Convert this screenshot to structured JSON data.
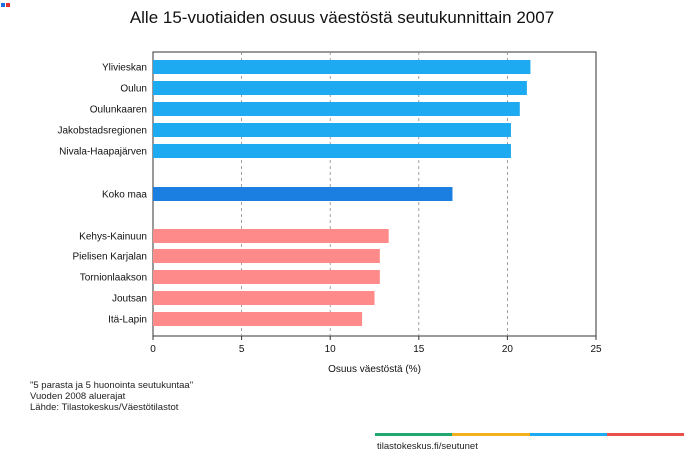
{
  "chart_data": {
    "type": "bar",
    "orientation": "horizontal",
    "title": "Alle 15-vuotiaiden osuus väestöstä seutukunnittain 2007",
    "xlabel": "Osuus väestöstä (%)",
    "ylabel": "",
    "xlim": [
      0,
      25
    ],
    "xticks": [
      0,
      5,
      10,
      15,
      20,
      25
    ],
    "grid": "vertical dashed",
    "categories": [
      "Ylivieskan",
      "Oulun",
      "Oulunkaaren",
      "Jakobstadsregionen",
      "Nivala-Haapajärven",
      "Koko maa",
      "Kehys-Kainuun",
      "Pielisen Karjalan",
      "Tornionlaakson",
      "Joutsan",
      "Itä-Lapin"
    ],
    "values": [
      21.3,
      21.1,
      20.7,
      20.2,
      20.2,
      16.9,
      13.3,
      12.8,
      12.8,
      12.5,
      11.8
    ],
    "colors": [
      "#1eaaf0",
      "#1eaaf0",
      "#1eaaf0",
      "#1eaaf0",
      "#1eaaf0",
      "#1a7fe0",
      "#ff8a8a",
      "#ff8a8a",
      "#ff8a8a",
      "#ff8a8a",
      "#ff8a8a"
    ]
  },
  "notes": [
    "\"5 parasta ja 5 huonointa seutukuntaa\"",
    "Vuoden 2008 aluerajat",
    "Lähde: Tilastokeskus/Väestötilastot"
  ],
  "footer": {
    "url": "tilastokeskus.fi/seutunet",
    "stripe_colors": [
      "#1fa870",
      "#f2b01e",
      "#1eaaf0",
      "#e8504a"
    ]
  },
  "corner_colors": [
    "#1e6fe0",
    "#e03030"
  ]
}
